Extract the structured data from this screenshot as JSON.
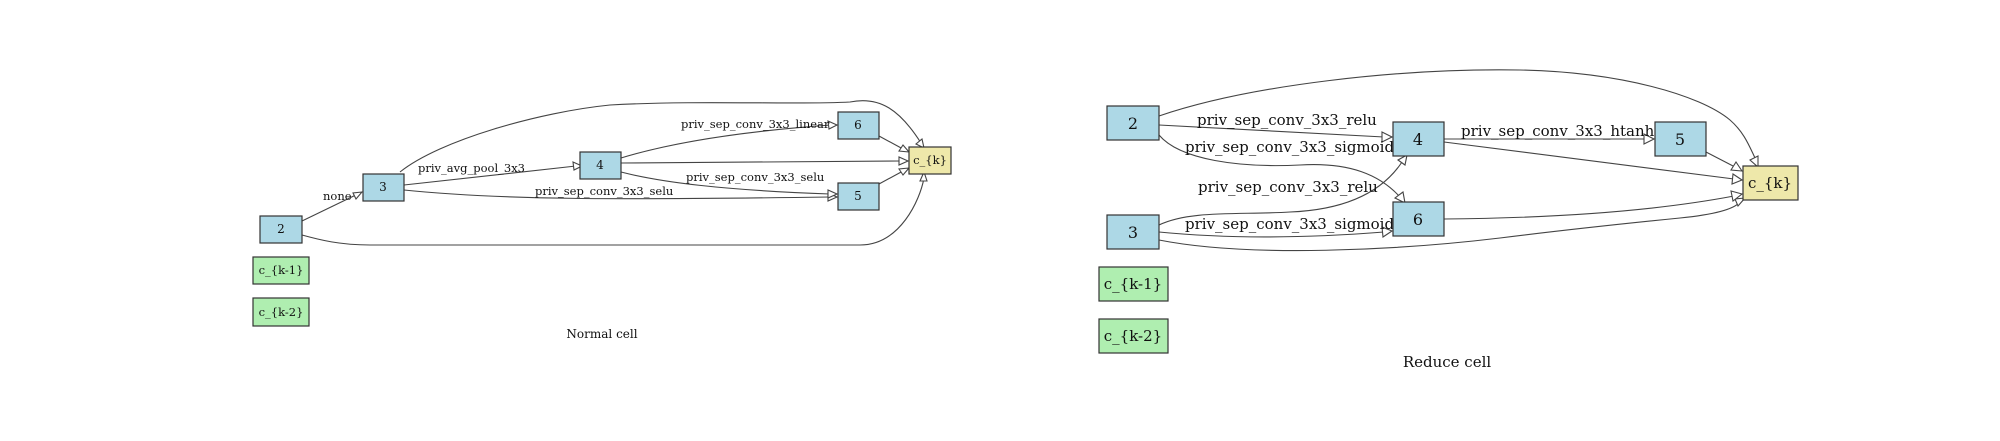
{
  "colors": {
    "intermediate": "#add8e6",
    "input": "#afeeb0",
    "output": "#eee8aa",
    "stroke": "#333333"
  },
  "normal_cell": {
    "title": "Normal cell",
    "nodes": {
      "n2": "2",
      "n3": "3",
      "n4": "4",
      "n5": "5",
      "n6": "6",
      "out": "c_{k}",
      "in1": "c_{k-1}",
      "in2": "c_{k-2}"
    },
    "edge_labels": {
      "e_2_3": "none",
      "e_3_4": "priv_avg_pool_3x3",
      "e_3_5": "priv_sep_conv_3x3_selu",
      "e_4_6": "priv_sep_conv_3x3_linear",
      "e_4_5": "priv_sep_conv_3x3_selu"
    }
  },
  "reduce_cell": {
    "title": "Reduce cell",
    "nodes": {
      "n2": "2",
      "n3": "3",
      "n4": "4",
      "n5": "5",
      "n6": "6",
      "out": "c_{k}",
      "in1": "c_{k-1}",
      "in2": "c_{k-2}"
    },
    "edge_labels": {
      "e_2_4": "priv_sep_conv_3x3_relu",
      "e_2_6": "priv_sep_conv_3x3_sigmoid",
      "e_3_4": "priv_sep_conv_3x3_relu",
      "e_3_6": "priv_sep_conv_3x3_sigmoid",
      "e_4_5": "priv_sep_conv_3x3_htanh"
    }
  }
}
